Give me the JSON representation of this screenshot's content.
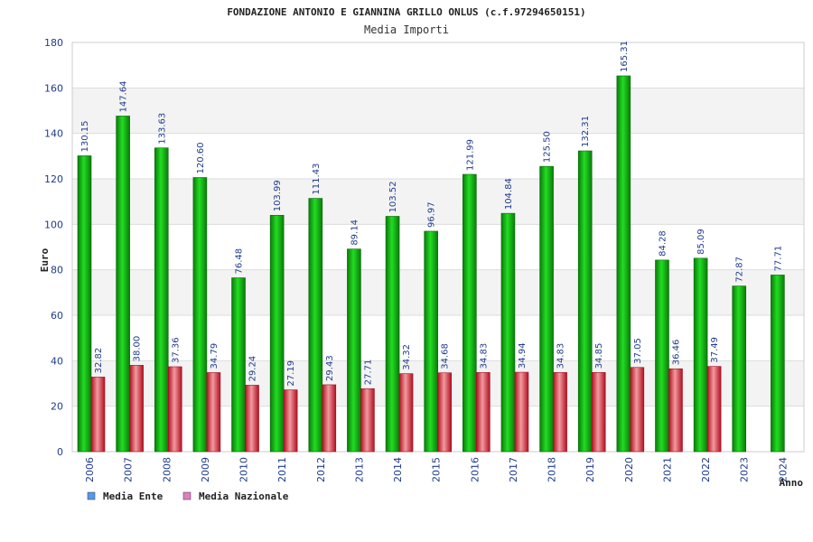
{
  "chart_data": {
    "type": "bar",
    "title": "FONDAZIONE ANTONIO E GIANNINA GRILLO ONLUS (c.f.97294650151)",
    "subtitle": "Media Importi",
    "xlabel": "Anno",
    "ylabel": "Euro",
    "ylim": [
      0,
      180
    ],
    "yticks": [
      0,
      20,
      40,
      60,
      80,
      100,
      120,
      140,
      160,
      180
    ],
    "grid": true,
    "legend_position": "bottom-left",
    "categories": [
      "2006",
      "2007",
      "2008",
      "2009",
      "2010",
      "2011",
      "2012",
      "2013",
      "2014",
      "2015",
      "2016",
      "2017",
      "2018",
      "2019",
      "2020",
      "2021",
      "2022",
      "2023",
      "2024"
    ],
    "series": [
      {
        "name": "Media Ente",
        "legend_color": "#5599ee",
        "color": "#11aa11",
        "values": [
          130.15,
          147.64,
          133.63,
          120.6,
          76.48,
          103.99,
          111.43,
          89.14,
          103.52,
          96.97,
          121.99,
          104.84,
          125.5,
          132.31,
          165.31,
          84.28,
          85.09,
          72.87,
          77.71
        ],
        "labels": [
          "130.15",
          "147.64",
          "133.63",
          "120.60",
          "76.48",
          "103.99",
          "111.43",
          "89.14",
          "103.52",
          "96.97",
          "121.99",
          "104.84",
          "125.50",
          "132.31",
          "165.31",
          "84.28",
          "85.09",
          "72.87",
          "77.71"
        ]
      },
      {
        "name": "Media Nazionale",
        "legend_color": "#e080c0",
        "color": "#dd2233",
        "values": [
          32.82,
          38.0,
          37.36,
          34.79,
          29.24,
          27.19,
          29.43,
          27.71,
          34.32,
          34.68,
          34.83,
          34.94,
          34.83,
          34.85,
          37.05,
          36.46,
          37.49,
          null,
          null
        ],
        "labels": [
          "32.82",
          "38.00",
          "37.36",
          "34.79",
          "29.24",
          "27.19",
          "29.43",
          "27.71",
          "34.32",
          "34.68",
          "34.83",
          "34.94",
          "34.83",
          "34.85",
          "37.05",
          "36.46",
          "37.49",
          null,
          null
        ]
      }
    ]
  }
}
